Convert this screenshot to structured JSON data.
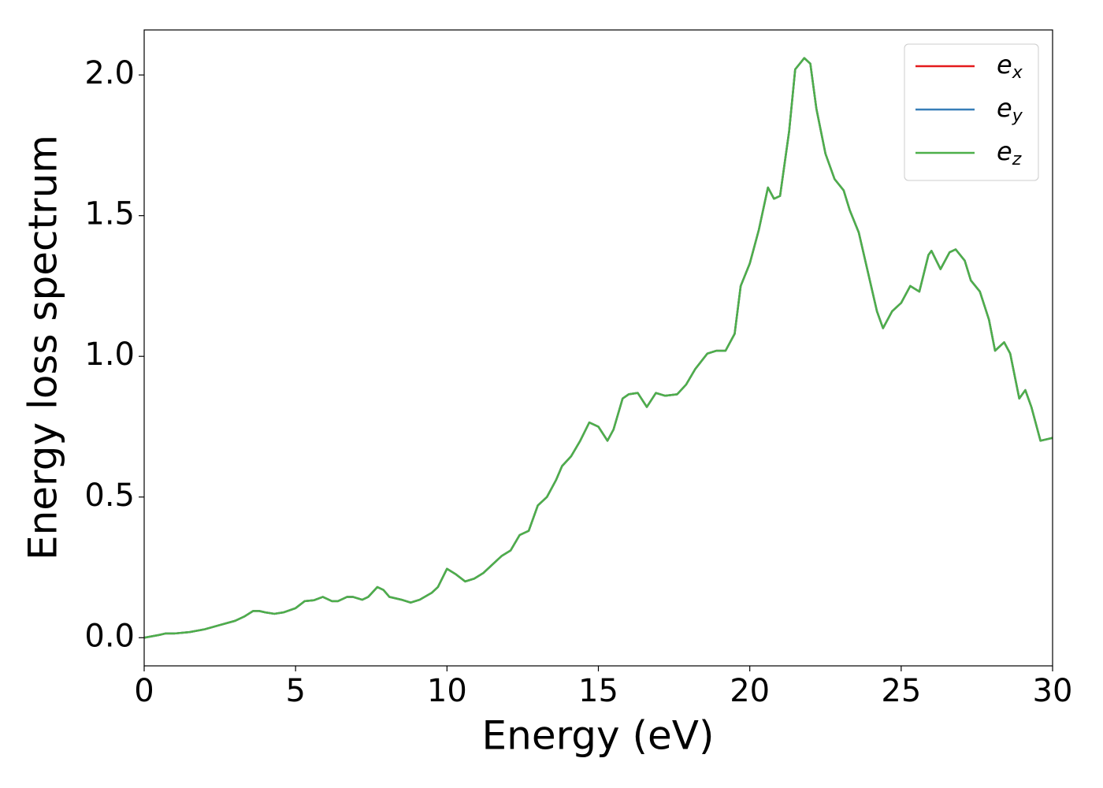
{
  "chart_data": {
    "type": "line",
    "xlabel": "Energy (eV)",
    "ylabel": "Energy loss spectrum",
    "x": [
      0,
      0.5,
      0.7,
      1.0,
      1.5,
      2.0,
      2.5,
      3.0,
      3.3,
      3.6,
      3.8,
      4.0,
      4.3,
      4.6,
      5.0,
      5.3,
      5.6,
      5.9,
      6.2,
      6.4,
      6.7,
      6.9,
      7.2,
      7.4,
      7.7,
      7.9,
      8.1,
      8.5,
      8.8,
      9.1,
      9.5,
      9.7,
      10.0,
      10.3,
      10.6,
      10.9,
      11.2,
      11.5,
      11.8,
      12.1,
      12.4,
      12.7,
      13.0,
      13.3,
      13.6,
      13.8,
      14.1,
      14.4,
      14.7,
      15.0,
      15.3,
      15.5,
      15.8,
      16.0,
      16.3,
      16.6,
      16.9,
      17.2,
      17.6,
      17.9,
      18.2,
      18.6,
      18.9,
      19.2,
      19.5,
      19.7,
      20.0,
      20.3,
      20.6,
      20.8,
      21.0,
      21.3,
      21.5,
      21.8,
      22.0,
      22.2,
      22.5,
      22.8,
      23.1,
      23.3,
      23.6,
      23.9,
      24.2,
      24.4,
      24.7,
      25.0,
      25.3,
      25.6,
      25.9,
      26.0,
      26.3,
      26.6,
      26.8,
      27.1,
      27.3,
      27.6,
      27.9,
      28.1,
      28.4,
      28.6,
      28.9,
      29.1,
      29.3,
      29.6,
      30.0
    ],
    "series": [
      {
        "name": "e_x",
        "color": "#e41a1c",
        "values": [
          0,
          0.01,
          0.015,
          0.015,
          0.02,
          0.03,
          0.045,
          0.06,
          0.075,
          0.095,
          0.095,
          0.09,
          0.085,
          0.09,
          0.105,
          0.13,
          0.133,
          0.145,
          0.13,
          0.13,
          0.145,
          0.145,
          0.135,
          0.145,
          0.18,
          0.17,
          0.145,
          0.135,
          0.125,
          0.135,
          0.16,
          0.18,
          0.245,
          0.225,
          0.2,
          0.21,
          0.23,
          0.26,
          0.29,
          0.31,
          0.365,
          0.38,
          0.47,
          0.5,
          0.56,
          0.61,
          0.645,
          0.7,
          0.765,
          0.75,
          0.7,
          0.74,
          0.85,
          0.865,
          0.87,
          0.82,
          0.87,
          0.86,
          0.865,
          0.9,
          0.955,
          1.01,
          1.02,
          1.02,
          1.08,
          1.25,
          1.33,
          1.45,
          1.6,
          1.56,
          1.57,
          1.8,
          2.02,
          2.06,
          2.04,
          1.88,
          1.72,
          1.63,
          1.59,
          1.52,
          1.44,
          1.3,
          1.16,
          1.1,
          1.16,
          1.19,
          1.25,
          1.23,
          1.36,
          1.375,
          1.31,
          1.37,
          1.38,
          1.34,
          1.27,
          1.23,
          1.13,
          1.02,
          1.05,
          1.01,
          0.85,
          0.88,
          0.82,
          0.7,
          0.71
        ]
      },
      {
        "name": "e_y",
        "color": "#377eb8",
        "values": [
          0,
          0.01,
          0.015,
          0.015,
          0.02,
          0.03,
          0.045,
          0.06,
          0.075,
          0.095,
          0.095,
          0.09,
          0.085,
          0.09,
          0.105,
          0.13,
          0.133,
          0.145,
          0.13,
          0.13,
          0.145,
          0.145,
          0.135,
          0.145,
          0.18,
          0.17,
          0.145,
          0.135,
          0.125,
          0.135,
          0.16,
          0.18,
          0.245,
          0.225,
          0.2,
          0.21,
          0.23,
          0.26,
          0.29,
          0.31,
          0.365,
          0.38,
          0.47,
          0.5,
          0.56,
          0.61,
          0.645,
          0.7,
          0.765,
          0.75,
          0.7,
          0.74,
          0.85,
          0.865,
          0.87,
          0.82,
          0.87,
          0.86,
          0.865,
          0.9,
          0.955,
          1.01,
          1.02,
          1.02,
          1.08,
          1.25,
          1.33,
          1.45,
          1.6,
          1.56,
          1.57,
          1.8,
          2.02,
          2.06,
          2.04,
          1.88,
          1.72,
          1.63,
          1.59,
          1.52,
          1.44,
          1.3,
          1.16,
          1.1,
          1.16,
          1.19,
          1.25,
          1.23,
          1.36,
          1.375,
          1.31,
          1.37,
          1.38,
          1.34,
          1.27,
          1.23,
          1.13,
          1.02,
          1.05,
          1.01,
          0.85,
          0.88,
          0.82,
          0.7,
          0.71
        ]
      },
      {
        "name": "e_z",
        "color": "#4daf4a",
        "values": [
          0,
          0.01,
          0.015,
          0.015,
          0.02,
          0.03,
          0.045,
          0.06,
          0.075,
          0.095,
          0.095,
          0.09,
          0.085,
          0.09,
          0.105,
          0.13,
          0.133,
          0.145,
          0.13,
          0.13,
          0.145,
          0.145,
          0.135,
          0.145,
          0.18,
          0.17,
          0.145,
          0.135,
          0.125,
          0.135,
          0.16,
          0.18,
          0.245,
          0.225,
          0.2,
          0.21,
          0.23,
          0.26,
          0.29,
          0.31,
          0.365,
          0.38,
          0.47,
          0.5,
          0.56,
          0.61,
          0.645,
          0.7,
          0.765,
          0.75,
          0.7,
          0.74,
          0.85,
          0.865,
          0.87,
          0.82,
          0.87,
          0.86,
          0.865,
          0.9,
          0.955,
          1.01,
          1.02,
          1.02,
          1.08,
          1.25,
          1.33,
          1.45,
          1.6,
          1.56,
          1.57,
          1.8,
          2.02,
          2.06,
          2.04,
          1.88,
          1.72,
          1.63,
          1.59,
          1.52,
          1.44,
          1.3,
          1.16,
          1.1,
          1.16,
          1.19,
          1.25,
          1.23,
          1.36,
          1.375,
          1.31,
          1.37,
          1.38,
          1.34,
          1.27,
          1.23,
          1.13,
          1.02,
          1.05,
          1.01,
          0.85,
          0.88,
          0.82,
          0.7,
          0.71
        ]
      }
    ],
    "xlim": [
      0,
      30
    ],
    "xticks": [
      0,
      5,
      10,
      15,
      20,
      25,
      30
    ],
    "ylim": [
      -0.1,
      2.16
    ],
    "yticks": [
      {
        "value": 0,
        "label": "0.0"
      },
      0.5,
      {
        "value": 1,
        "label": "1.0"
      },
      1.5,
      {
        "value": 2,
        "label": "2.0"
      }
    ],
    "grid": false,
    "legend": "upper right"
  }
}
